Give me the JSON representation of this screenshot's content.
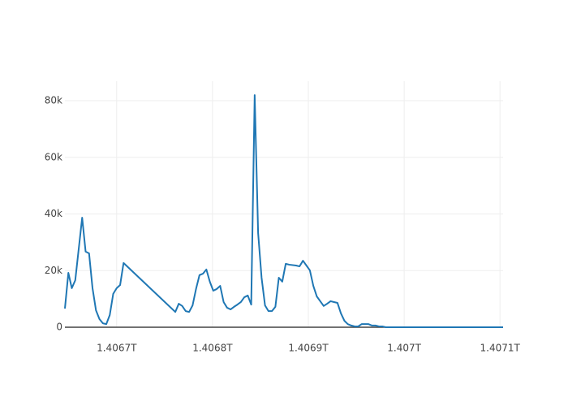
{
  "chart_data": {
    "type": "line",
    "x": [
      1406646000000,
      1406649600000,
      1406653200000,
      1406656800000,
      1406664000000,
      1406667600000,
      1406671200000,
      1406674800000,
      1406678400000,
      1406682000000,
      1406685600000,
      1406689200000,
      1406692800000,
      1406696400000,
      1406700000000,
      1406703600000,
      1406707200000,
      1406761200000,
      1406764800000,
      1406768400000,
      1406772000000,
      1406775600000,
      1406779200000,
      1406782800000,
      1406786400000,
      1406790000000,
      1406793600000,
      1406797200000,
      1406800800000,
      1406804400000,
      1406808000000,
      1406811600000,
      1406815200000,
      1406818800000,
      1406822400000,
      1406826000000,
      1406829600000,
      1406833200000,
      1406836800000,
      1406840400000,
      1406844000000,
      1406847600000,
      1406851200000,
      1406854800000,
      1406858400000,
      1406862000000,
      1406865600000,
      1406869200000,
      1406872800000,
      1406876400000,
      1406880000000,
      1406887200000,
      1406890800000,
      1406894400000,
      1406898000000,
      1406901600000,
      1406905200000,
      1406908800000,
      1406912400000,
      1406916000000,
      1406919600000,
      1406923200000,
      1406926800000,
      1406930400000,
      1406934000000,
      1406937600000,
      1406941200000,
      1406944800000,
      1406948400000,
      1406952000000,
      1406955600000,
      1406959200000,
      1406962800000,
      1406966400000,
      1406970000000,
      1406973600000,
      1406977200000,
      1406980800000,
      1406988000000,
      1407006000000,
      1407024000000,
      1407042000000,
      1407060000000,
      1407078000000,
      1407103200000
    ],
    "series": [
      {
        "color": "#1f77b4",
        "values": [
          6600,
          19200,
          13800,
          16600,
          38700,
          26700,
          26100,
          13800,
          6000,
          2900,
          1400,
          1100,
          4300,
          11800,
          13800,
          14900,
          22700,
          5400,
          8300,
          7500,
          5700,
          5400,
          7700,
          13500,
          18400,
          18900,
          20400,
          16100,
          12900,
          13500,
          14600,
          8900,
          6900,
          6300,
          7200,
          8000,
          8900,
          10600,
          11200,
          8000,
          82000,
          33300,
          17500,
          7700,
          5700,
          5700,
          7200,
          17500,
          16100,
          22400,
          22100,
          21800,
          21500,
          23500,
          21800,
          20100,
          14600,
          10900,
          9200,
          7500,
          8300,
          9200,
          8900,
          8600,
          4900,
          2300,
          1100,
          600,
          300,
          300,
          1100,
          1100,
          1100,
          600,
          600,
          300,
          300,
          0,
          0,
          0,
          0,
          0,
          0,
          0,
          0
        ]
      }
    ],
    "xlim": [
      1406646000000,
      1407103200000
    ],
    "xticks": [
      {
        "value": 1406700000000,
        "label": "1.4067T"
      },
      {
        "value": 1406800000000,
        "label": "1.4068T"
      },
      {
        "value": 1406900000000,
        "label": "1.4069T"
      },
      {
        "value": 1407000000000,
        "label": "1.407T"
      },
      {
        "value": 1407100000000,
        "label": "1.4071T"
      }
    ],
    "ylim": [
      0,
      86900
    ],
    "yticks": [
      0,
      {
        "value": 20000,
        "label": "20k"
      },
      {
        "value": 40000,
        "label": "40k"
      },
      {
        "value": 60000,
        "label": "60k"
      },
      {
        "value": 80000,
        "label": "80k"
      }
    ],
    "grid": true,
    "zeroline": true
  }
}
